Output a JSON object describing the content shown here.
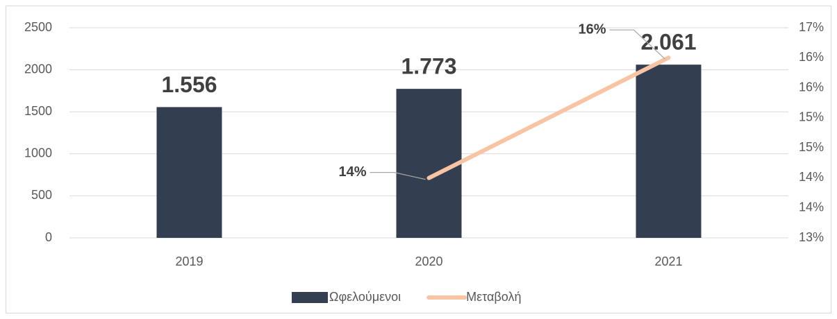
{
  "chart_data": {
    "type": "bar",
    "categories": [
      "2019",
      "2020",
      "2021"
    ],
    "series": [
      {
        "name": "Ωφελούμενοι",
        "type": "bar",
        "color": "#333f50",
        "values": [
          1556,
          1773,
          2061
        ],
        "value_labels": [
          "1.556",
          "1.773",
          "2.061"
        ]
      },
      {
        "name": "Μεταβολή",
        "type": "line",
        "axis": "y2",
        "color": "#f8c4a4",
        "values": [
          null,
          14.14,
          16.43
        ],
        "value_labels": [
          null,
          "14%",
          "16%"
        ]
      }
    ],
    "ylim": [
      0,
      2500
    ],
    "yticks": [
      0,
      500,
      1000,
      1500,
      2000,
      2500
    ],
    "y2lim": [
      13,
      17
    ],
    "y2ticks": [
      {
        "value": 13,
        "label": "13%"
      },
      {
        "value": 13.571,
        "label": "14%"
      },
      {
        "value": 14.143,
        "label": "14%"
      },
      {
        "value": 14.714,
        "label": "15%"
      },
      {
        "value": 15.286,
        "label": "15%"
      },
      {
        "value": 15.857,
        "label": "16%"
      },
      {
        "value": 16.429,
        "label": "16%"
      },
      {
        "value": 17,
        "label": "17%"
      }
    ],
    "grid": true,
    "legend": "bottom"
  }
}
